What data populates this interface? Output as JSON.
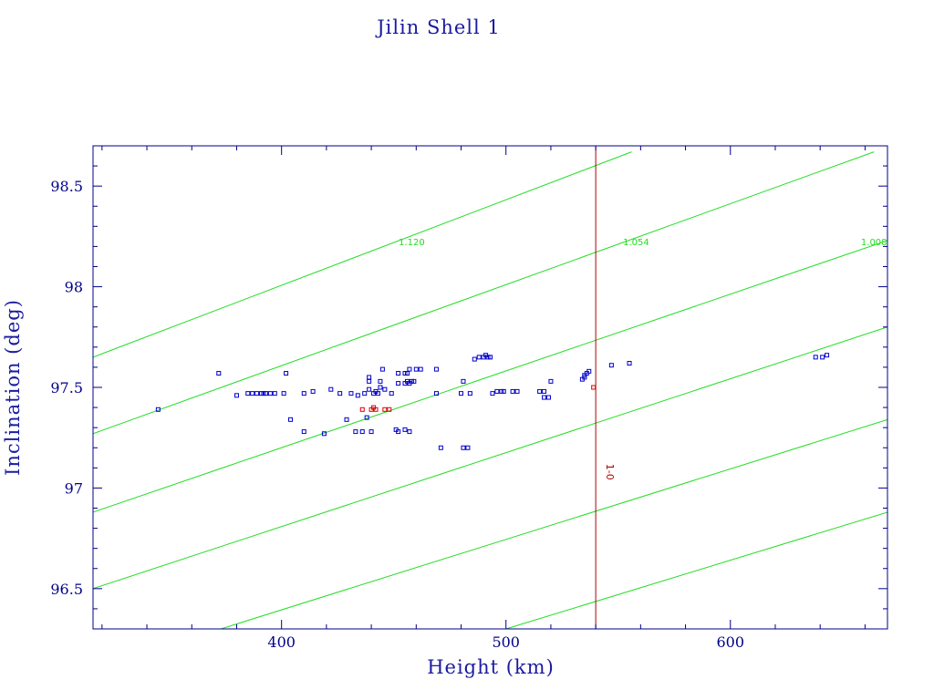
{
  "chart_data": {
    "type": "scatter",
    "title": "Jilin Shell 1",
    "xlabel": "Height (km)",
    "ylabel": "Inclination (deg)",
    "xlim": [
      316,
      670
    ],
    "ylim": [
      96.3,
      98.7
    ],
    "x_ticks": [
      400,
      500,
      600
    ],
    "y_ticks": [
      96.5,
      97,
      97.5,
      98,
      98.5
    ],
    "x_tick_labels": [
      "400",
      "500",
      "600"
    ],
    "y_tick_labels": [
      "96.5",
      "97",
      "97.5",
      "98",
      "98.5"
    ],
    "grid": false,
    "colors": {
      "axis": "#00008b",
      "blue_points": "#0000cc",
      "red_points": "#dd0000",
      "contours": "#22dd22",
      "vertical_line": "#b00000"
    },
    "contour_lines": [
      {
        "label": "1.120",
        "x": [
          316,
          556
        ],
        "y": [
          97.65,
          98.67
        ]
      },
      {
        "label": "1.054",
        "x": [
          316,
          664
        ],
        "y": [
          97.27,
          98.67
        ]
      },
      {
        "label": "1.008",
        "x": [
          316,
          670
        ],
        "y": [
          96.88,
          98.23
        ]
      },
      {
        "x": [
          316,
          670
        ],
        "y": [
          96.5,
          97.8
        ]
      },
      {
        "x": [
          373,
          670
        ],
        "y": [
          96.3,
          97.34
        ]
      },
      {
        "x": [
          500,
          670
        ],
        "y": [
          96.3,
          96.88
        ]
      }
    ],
    "contour_labels": [
      {
        "text": "1.120",
        "x": 458,
        "y": 98.22
      },
      {
        "text": "1.054",
        "x": 558,
        "y": 98.22
      },
      {
        "text": "1.008",
        "x": 664,
        "y": 98.22
      }
    ],
    "vertical_line": {
      "x": 540,
      "label": "1-0",
      "label_y": 97.08
    },
    "series": [
      {
        "color": "#0000cc",
        "points": [
          [
            345,
            97.39
          ],
          [
            372,
            97.57
          ],
          [
            380,
            97.46
          ],
          [
            385,
            97.47
          ],
          [
            387,
            97.47
          ],
          [
            389,
            97.47
          ],
          [
            391,
            97.47
          ],
          [
            392,
            97.47
          ],
          [
            393,
            97.47
          ],
          [
            395,
            97.47
          ],
          [
            397,
            97.47
          ],
          [
            401,
            97.47
          ],
          [
            402,
            97.57
          ],
          [
            404,
            97.34
          ],
          [
            410,
            97.28
          ],
          [
            410,
            97.47
          ],
          [
            414,
            97.48
          ],
          [
            419,
            97.27
          ],
          [
            422,
            97.49
          ],
          [
            426,
            97.47
          ],
          [
            429,
            97.34
          ],
          [
            431,
            97.47
          ],
          [
            433,
            97.28
          ],
          [
            434,
            97.46
          ],
          [
            436,
            97.28
          ],
          [
            437,
            97.47
          ],
          [
            438,
            97.35
          ],
          [
            439,
            97.49
          ],
          [
            439,
            97.53
          ],
          [
            439,
            97.55
          ],
          [
            440,
            97.28
          ],
          [
            441,
            97.47
          ],
          [
            442,
            97.48
          ],
          [
            443,
            97.47
          ],
          [
            444,
            97.5
          ],
          [
            444,
            97.53
          ],
          [
            445,
            97.59
          ],
          [
            446,
            97.49
          ],
          [
            449,
            97.47
          ],
          [
            451,
            97.29
          ],
          [
            452,
            97.28
          ],
          [
            452,
            97.57
          ],
          [
            452,
            97.52
          ],
          [
            455,
            97.29
          ],
          [
            455,
            97.52
          ],
          [
            455,
            97.57
          ],
          [
            456,
            97.53
          ],
          [
            456,
            97.57
          ],
          [
            457,
            97.28
          ],
          [
            457,
            97.52
          ],
          [
            457,
            97.59
          ],
          [
            458,
            97.53
          ],
          [
            459,
            97.53
          ],
          [
            460,
            97.59
          ],
          [
            462,
            97.59
          ],
          [
            469,
            97.59
          ],
          [
            469,
            97.47
          ],
          [
            471,
            97.2
          ],
          [
            480,
            97.47
          ],
          [
            481,
            97.53
          ],
          [
            481,
            97.2
          ],
          [
            483,
            97.2
          ],
          [
            484,
            97.47
          ],
          [
            486,
            97.64
          ],
          [
            488,
            97.65
          ],
          [
            490,
            97.65
          ],
          [
            491,
            97.66
          ],
          [
            492,
            97.65
          ],
          [
            493,
            97.65
          ],
          [
            494,
            97.47
          ],
          [
            496,
            97.48
          ],
          [
            498,
            97.48
          ],
          [
            499,
            97.48
          ],
          [
            503,
            97.48
          ],
          [
            505,
            97.48
          ],
          [
            515,
            97.48
          ],
          [
            517,
            97.48
          ],
          [
            517,
            97.45
          ],
          [
            519,
            97.45
          ],
          [
            520,
            97.53
          ],
          [
            534,
            97.54
          ],
          [
            535,
            97.55
          ],
          [
            535,
            97.56
          ],
          [
            536,
            97.57
          ],
          [
            537,
            97.58
          ],
          [
            547,
            97.61
          ],
          [
            555,
            97.62
          ],
          [
            638,
            97.65
          ],
          [
            641,
            97.65
          ],
          [
            643,
            97.66
          ]
        ]
      },
      {
        "color": "#dd0000",
        "points": [
          [
            436,
            97.39
          ],
          [
            440,
            97.39
          ],
          [
            441,
            97.4
          ],
          [
            442,
            97.39
          ],
          [
            446,
            97.39
          ],
          [
            448,
            97.39
          ],
          [
            539,
            97.5
          ]
        ]
      }
    ]
  }
}
